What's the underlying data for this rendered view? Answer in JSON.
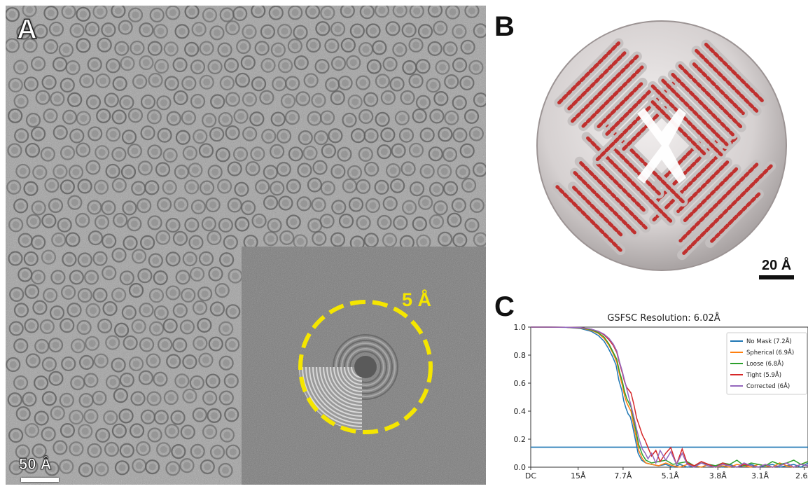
{
  "panel_a": {
    "letter": "A",
    "scale_label": "50 Å",
    "inset": {
      "ring_label": "5 Å",
      "ring_color": "#f5e600"
    }
  },
  "panel_b": {
    "letter": "B",
    "scale_label": "20 Å",
    "helix_color": "#c0302e",
    "density_color": "#d8d4d4"
  },
  "panel_c": {
    "letter": "C",
    "chart_data": {
      "type": "line",
      "title": "GSFSC Resolution: 6.02Å",
      "xlabel": "",
      "ylabel": "",
      "x_ticks": [
        "DC",
        "15Å",
        "7.7Å",
        "5.1Å",
        "3.8Å",
        "3.1Å",
        "2.6Å"
      ],
      "x_tick_positions": [
        0,
        0.0667,
        0.1299,
        0.1961,
        0.2632,
        0.3226,
        0.3846
      ],
      "x_unit": "spatial frequency (1/Å)",
      "xlim": [
        0,
        0.39
      ],
      "ylim": [
        0,
        1.0
      ],
      "y_ticks": [
        0.0,
        0.2,
        0.4,
        0.6,
        0.8,
        1.0
      ],
      "threshold": 0.143,
      "threshold_color": "#1f77b4",
      "legend_position": "top-right",
      "series": [
        {
          "name": "No Mask (7.2Å)",
          "color": "#1f77b4",
          "x": [
            0,
            0.02,
            0.05,
            0.07,
            0.085,
            0.095,
            0.103,
            0.109,
            0.115,
            0.12,
            0.124,
            0.128,
            0.131,
            0.134,
            0.137,
            0.14,
            0.143,
            0.147,
            0.151,
            0.156,
            0.162,
            0.17,
            0.18,
            0.19,
            0.2,
            0.21,
            0.22,
            0.23,
            0.24,
            0.25,
            0.26,
            0.27,
            0.28,
            0.29,
            0.3,
            0.31,
            0.32,
            0.33,
            0.34,
            0.35,
            0.36,
            0.37,
            0.38,
            0.39
          ],
          "y": [
            1.0,
            1.0,
            0.998,
            0.99,
            0.97,
            0.94,
            0.9,
            0.85,
            0.79,
            0.73,
            0.62,
            0.55,
            0.47,
            0.42,
            0.38,
            0.36,
            0.3,
            0.2,
            0.1,
            0.05,
            0.03,
            0.02,
            0.01,
            0.02,
            0.0,
            0.02,
            0.0,
            0.01,
            0.0,
            0.02,
            0.01,
            0.0,
            0.02,
            0.0,
            0.01,
            0.02,
            0.0,
            0.01,
            0.02,
            0.0,
            0.01,
            0.02,
            0.0,
            0.03
          ]
        },
        {
          "name": "Spherical (6.9Å)",
          "color": "#ff7f0e",
          "x": [
            0,
            0.02,
            0.05,
            0.07,
            0.085,
            0.095,
            0.103,
            0.11,
            0.116,
            0.121,
            0.125,
            0.129,
            0.132,
            0.135,
            0.138,
            0.141,
            0.144,
            0.148,
            0.152,
            0.157,
            0.162,
            0.17,
            0.18,
            0.19,
            0.2,
            0.21,
            0.22,
            0.23,
            0.24,
            0.25,
            0.26,
            0.27,
            0.28,
            0.29,
            0.3,
            0.31,
            0.32,
            0.33,
            0.34,
            0.35,
            0.36,
            0.37,
            0.38,
            0.39
          ],
          "y": [
            1.0,
            1.0,
            0.999,
            0.993,
            0.978,
            0.955,
            0.92,
            0.87,
            0.81,
            0.75,
            0.66,
            0.58,
            0.51,
            0.46,
            0.43,
            0.4,
            0.32,
            0.22,
            0.12,
            0.06,
            0.03,
            0.02,
            0.01,
            0.03,
            0.01,
            0.0,
            0.02,
            0.01,
            0.0,
            0.02,
            0.0,
            0.01,
            0.0,
            0.02,
            0.01,
            0.0,
            0.02,
            0.01,
            0.0,
            0.03,
            0.01,
            0.0,
            0.02,
            0.04
          ]
        },
        {
          "name": "Loose (6.8Å)",
          "color": "#2ca02c",
          "x": [
            0,
            0.02,
            0.05,
            0.07,
            0.085,
            0.095,
            0.103,
            0.11,
            0.116,
            0.121,
            0.125,
            0.129,
            0.132,
            0.135,
            0.138,
            0.141,
            0.144,
            0.148,
            0.152,
            0.157,
            0.162,
            0.17,
            0.18,
            0.19,
            0.2,
            0.21,
            0.22,
            0.23,
            0.24,
            0.25,
            0.26,
            0.27,
            0.28,
            0.29,
            0.3,
            0.31,
            0.32,
            0.33,
            0.34,
            0.35,
            0.36,
            0.37,
            0.38,
            0.39
          ],
          "y": [
            1.0,
            1.0,
            0.999,
            0.995,
            0.982,
            0.96,
            0.93,
            0.88,
            0.82,
            0.77,
            0.68,
            0.61,
            0.54,
            0.49,
            0.46,
            0.43,
            0.36,
            0.26,
            0.16,
            0.09,
            0.05,
            0.03,
            0.04,
            0.05,
            0.02,
            0.03,
            0.04,
            0.01,
            0.03,
            0.02,
            0.01,
            0.03,
            0.02,
            0.05,
            0.01,
            0.03,
            0.02,
            0.01,
            0.04,
            0.02,
            0.03,
            0.05,
            0.02,
            0.04
          ]
        },
        {
          "name": "Tight (5.9Å)",
          "color": "#d62728",
          "x": [
            0,
            0.02,
            0.05,
            0.07,
            0.085,
            0.095,
            0.103,
            0.11,
            0.116,
            0.121,
            0.125,
            0.129,
            0.132,
            0.135,
            0.138,
            0.141,
            0.145,
            0.149,
            0.153,
            0.157,
            0.161,
            0.165,
            0.17,
            0.176,
            0.182,
            0.19,
            0.197,
            0.205,
            0.213,
            0.22,
            0.23,
            0.24,
            0.25,
            0.26,
            0.27,
            0.28,
            0.29,
            0.3,
            0.31,
            0.32,
            0.33,
            0.34,
            0.35,
            0.36,
            0.37,
            0.38,
            0.39
          ],
          "y": [
            1.0,
            1.0,
            0.999,
            0.996,
            0.986,
            0.968,
            0.945,
            0.91,
            0.87,
            0.82,
            0.74,
            0.67,
            0.61,
            0.57,
            0.55,
            0.53,
            0.45,
            0.35,
            0.29,
            0.23,
            0.19,
            0.14,
            0.08,
            0.12,
            0.04,
            0.1,
            0.14,
            0.02,
            0.13,
            0.03,
            0.01,
            0.04,
            0.02,
            0.0,
            0.03,
            0.01,
            0.0,
            0.02,
            0.01,
            0.0,
            0.02,
            0.0,
            0.01,
            0.03,
            0.0,
            0.02,
            0.01
          ]
        },
        {
          "name": "Corrected (6Å)",
          "color": "#9467bd",
          "x": [
            0,
            0.02,
            0.05,
            0.07,
            0.085,
            0.095,
            0.103,
            0.11,
            0.116,
            0.121,
            0.125,
            0.129,
            0.132,
            0.135,
            0.138,
            0.141,
            0.145,
            0.149,
            0.153,
            0.157,
            0.161,
            0.165,
            0.17,
            0.176,
            0.182,
            0.19,
            0.197,
            0.205,
            0.213,
            0.22,
            0.23,
            0.24,
            0.25,
            0.26,
            0.27,
            0.28,
            0.29,
            0.3,
            0.31,
            0.32,
            0.33,
            0.34,
            0.35,
            0.36,
            0.37,
            0.38,
            0.39
          ],
          "y": [
            1.0,
            1.0,
            0.999,
            0.996,
            0.986,
            0.97,
            0.95,
            0.92,
            0.88,
            0.83,
            0.75,
            0.68,
            0.62,
            0.56,
            0.5,
            0.44,
            0.36,
            0.27,
            0.19,
            0.13,
            0.1,
            0.06,
            0.1,
            0.03,
            0.12,
            0.05,
            0.11,
            0.02,
            0.1,
            0.02,
            0.0,
            0.03,
            0.01,
            0.0,
            0.02,
            0.01,
            0.0,
            0.03,
            0.01,
            0.0,
            0.02,
            0.0,
            0.01,
            0.03,
            0.0,
            0.02,
            0.01
          ]
        }
      ]
    }
  }
}
